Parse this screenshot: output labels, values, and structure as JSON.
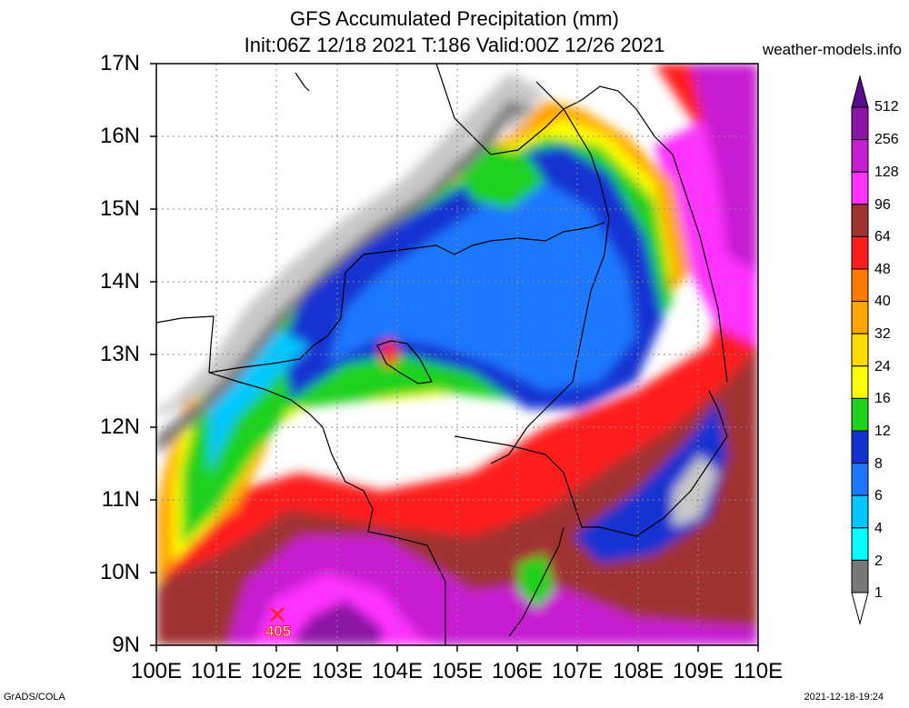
{
  "title_line1": "GFS Accumulated Precipitation (mm)",
  "title_line2": "Init:06Z 12/18 2021 T:186 Valid:00Z 12/26 2021",
  "source": "weather-models.info",
  "footer_left": "GrADS/COLA",
  "footer_right": "2021-12-18-19:24",
  "max_marker": {
    "label": "405",
    "lon": 102.05,
    "lat": 9.4
  },
  "map": {
    "lat_labels": [
      "17N",
      "16N",
      "15N",
      "14N",
      "13N",
      "12N",
      "11N",
      "10N",
      "9N"
    ],
    "lon_labels": [
      "100E",
      "101E",
      "102E",
      "103E",
      "104E",
      "105E",
      "106E",
      "107E",
      "108E",
      "109E",
      "110E"
    ],
    "lon_range": [
      100,
      110
    ],
    "lat_range": [
      9,
      17
    ],
    "gridlines": true
  },
  "legend": {
    "labels": [
      "512",
      "256",
      "128",
      "96",
      "64",
      "48",
      "40",
      "32",
      "24",
      "16",
      "12",
      "8",
      "6",
      "4",
      "2",
      "1"
    ],
    "colors": [
      "#5a0a8c",
      "#8c14a5",
      "#c81ed2",
      "#ff32ff",
      "#a03232",
      "#ff1e1e",
      "#ff7800",
      "#ffa500",
      "#ffdc00",
      "#ffff00",
      "#1ed21e",
      "#1432d2",
      "#1e78ff",
      "#00c8ff",
      "#00ffff",
      "#787878",
      "#c8c8c8"
    ]
  },
  "palette": {
    "bg_bottom": "#c81ed2",
    "bg_east": "#a03232"
  }
}
